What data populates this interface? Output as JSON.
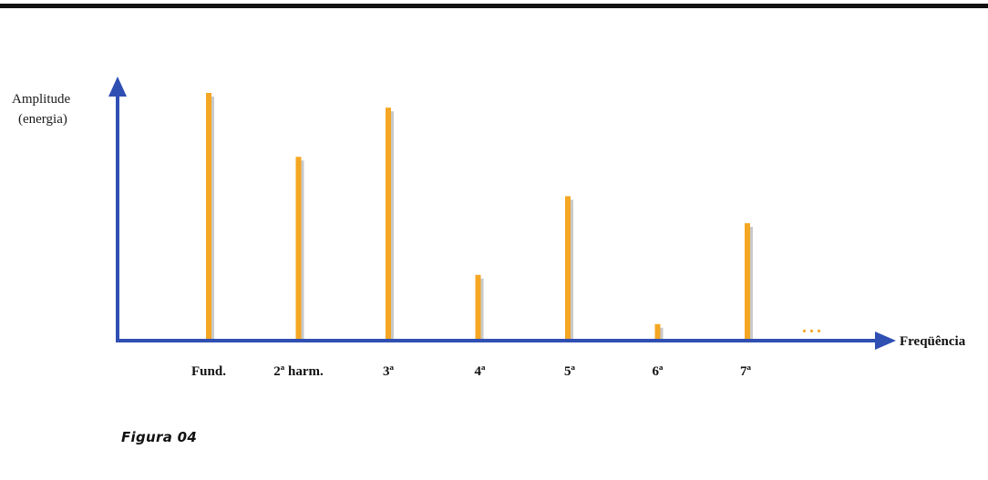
{
  "caption": "Figura 04",
  "chart_data": {
    "type": "bar",
    "categories": [
      "Fund.",
      "2ª harm.",
      "3ª",
      "4ª",
      "5ª",
      "6ª",
      "7ª"
    ],
    "values": [
      100,
      74,
      94,
      26,
      58,
      6,
      47
    ],
    "ylabel_line1": "Amplitude",
    "ylabel_line2": "(energia)",
    "xlabel": "Freqüência",
    "ellipsis": "...",
    "ylim": [
      0,
      100
    ],
    "grid": false,
    "colors": {
      "bar": "#f5a623",
      "bar_shadow": "#c9c9c9",
      "axis": "#2f4fb3",
      "ellipsis": "#f5a623"
    }
  }
}
